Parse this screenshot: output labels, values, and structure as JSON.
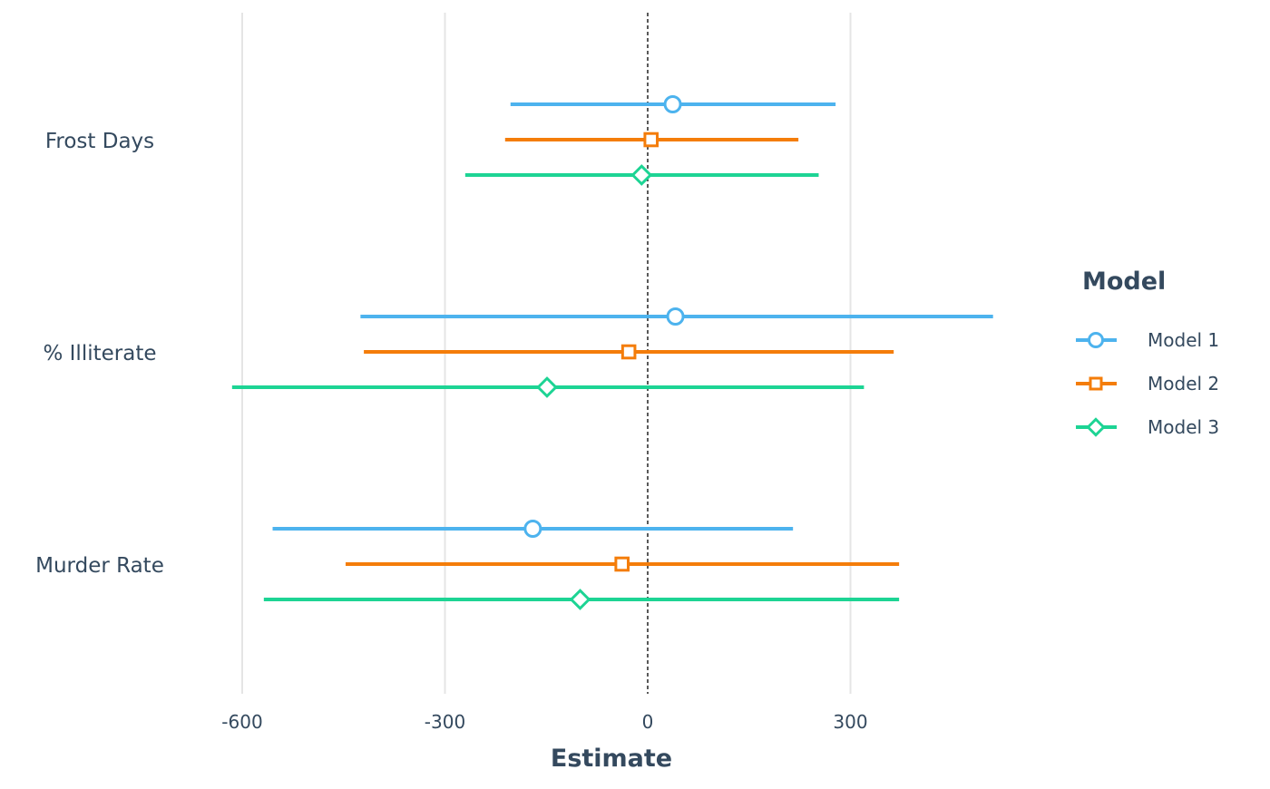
{
  "chart_data": {
    "type": "forest",
    "xlabel": "Estimate",
    "ylabel": "",
    "title": "",
    "xlim": [
      -600,
      550
    ],
    "x_ticks": [
      -600,
      -300,
      0,
      300
    ],
    "x_tick_labels": [
      "-600",
      "-300",
      "0",
      "300"
    ],
    "reference_line": 0,
    "grid": "vertical major",
    "legend": {
      "title": "Model",
      "placement": "right"
    },
    "categories": [
      "Frost Days",
      "% Illiterate",
      "Murder Rate"
    ],
    "series": [
      {
        "name": "Model 1",
        "color": "#4db3ee",
        "marker": "circle",
        "points": [
          {
            "term": "Frost Days",
            "estimate": 37,
            "low": -203,
            "high": 278
          },
          {
            "term": "% Illiterate",
            "estimate": 41,
            "low": -425,
            "high": 511
          },
          {
            "term": "Murder Rate",
            "estimate": -170,
            "low": -555,
            "high": 215
          }
        ]
      },
      {
        "name": "Model 2",
        "color": "#f47d0a",
        "marker": "square",
        "points": [
          {
            "term": "Frost Days",
            "estimate": 5,
            "low": -211,
            "high": 223
          },
          {
            "term": "% Illiterate",
            "estimate": -28,
            "low": -420,
            "high": 364
          },
          {
            "term": "Murder Rate",
            "estimate": -38,
            "low": -447,
            "high": 372
          }
        ]
      },
      {
        "name": "Model 3",
        "color": "#1dd494",
        "marker": "diamond",
        "points": [
          {
            "term": "Frost Days",
            "estimate": -9,
            "low": -270,
            "high": 253
          },
          {
            "term": "% Illiterate",
            "estimate": -149,
            "low": -615,
            "high": 320
          },
          {
            "term": "Murder Rate",
            "estimate": -100,
            "low": -568,
            "high": 372
          }
        ]
      }
    ]
  }
}
